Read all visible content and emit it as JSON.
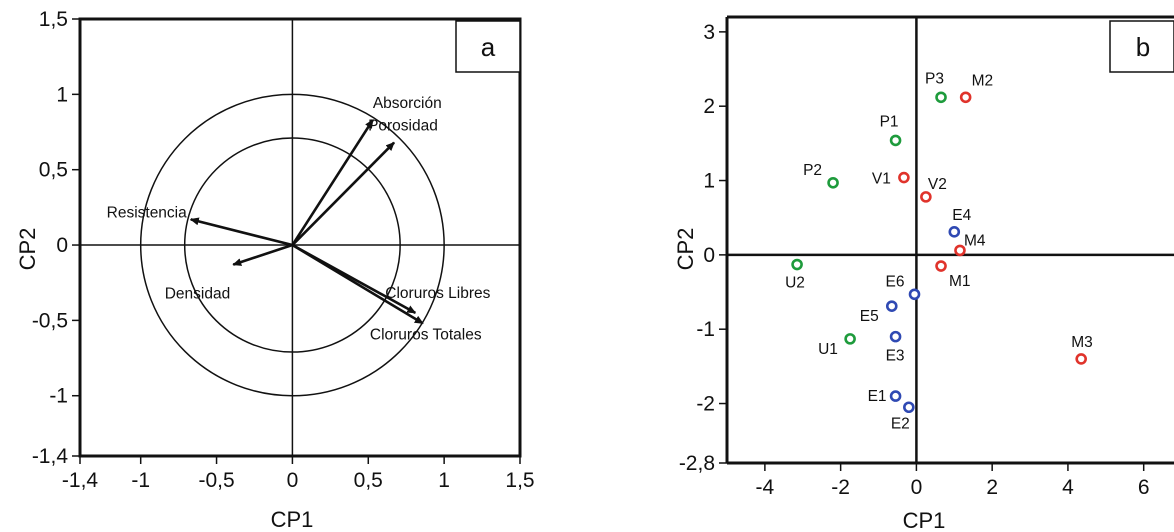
{
  "chart_data": [
    {
      "type": "biplot",
      "panel_label": "a",
      "xlabel": "CP1",
      "ylabel": "CP2",
      "xlim": [
        -1.4,
        1.5
      ],
      "ylim": [
        -1.4,
        1.5
      ],
      "xticks": [
        {
          "v": -1.4,
          "label": "-1,4"
        },
        {
          "v": -1,
          "label": "-1"
        },
        {
          "v": -0.5,
          "label": "-0,5"
        },
        {
          "v": 0,
          "label": "0"
        },
        {
          "v": 0.5,
          "label": "0,5"
        },
        {
          "v": 1,
          "label": "1"
        },
        {
          "v": 1.5,
          "label": "1,5"
        }
      ],
      "yticks": [
        {
          "v": 1.5,
          "label": "1,5"
        },
        {
          "v": 1,
          "label": "1"
        },
        {
          "v": 0.5,
          "label": "0,5"
        },
        {
          "v": 0,
          "label": "0"
        },
        {
          "v": -0.5,
          "label": "-0,5"
        },
        {
          "v": -1,
          "label": "-1"
        },
        {
          "v": -1.4,
          "label": "-1,4"
        }
      ],
      "circles": [
        1.0,
        0.71
      ],
      "vectors": [
        {
          "name": "Absorción",
          "x": 0.53,
          "y": 0.83
        },
        {
          "name": "Porosidad",
          "x": 0.67,
          "y": 0.68
        },
        {
          "name": "Resistencia",
          "x": -0.67,
          "y": 0.17
        },
        {
          "name": "Densidad",
          "x": -0.39,
          "y": -0.13
        },
        {
          "name": "Cloruros Libres",
          "x": 0.81,
          "y": -0.45
        },
        {
          "name": "Cloruros Totales",
          "x": 0.86,
          "y": -0.52
        }
      ]
    },
    {
      "type": "scatter",
      "panel_label": "b",
      "xlabel": "CP1",
      "ylabel": "CP2",
      "xlim": [
        -5,
        6.8
      ],
      "ylim": [
        -2.8,
        3.2
      ],
      "xticks": [
        {
          "v": -4,
          "label": "-4"
        },
        {
          "v": -2,
          "label": "-2"
        },
        {
          "v": 0,
          "label": "0"
        },
        {
          "v": 2,
          "label": "2"
        },
        {
          "v": 4,
          "label": "4"
        },
        {
          "v": 6,
          "label": "6"
        }
      ],
      "yticks": [
        {
          "v": 3,
          "label": "3"
        },
        {
          "v": 2,
          "label": "2"
        },
        {
          "v": 1,
          "label": "1"
        },
        {
          "v": 0,
          "label": "0"
        },
        {
          "v": -1,
          "label": "-1"
        },
        {
          "v": -2,
          "label": "-2"
        },
        {
          "v": -2.8,
          "label": "-2,8"
        }
      ],
      "colors": {
        "green": "#1e9b3c",
        "red": "#e0332b",
        "blue": "#2f49b3"
      },
      "points": [
        {
          "name": "P3",
          "x": 0.65,
          "y": 2.12,
          "color": "green"
        },
        {
          "name": "M2",
          "x": 1.3,
          "y": 2.12,
          "color": "red"
        },
        {
          "name": "P1",
          "x": -0.55,
          "y": 1.54,
          "color": "green"
        },
        {
          "name": "P2",
          "x": -2.2,
          "y": 0.97,
          "color": "green"
        },
        {
          "name": "V1",
          "x": -0.33,
          "y": 1.04,
          "color": "red"
        },
        {
          "name": "V2",
          "x": 0.25,
          "y": 0.78,
          "color": "red"
        },
        {
          "name": "E4",
          "x": 1.0,
          "y": 0.31,
          "color": "blue"
        },
        {
          "name": "M4",
          "x": 1.15,
          "y": 0.06,
          "color": "red"
        },
        {
          "name": "U2",
          "x": -3.15,
          "y": -0.13,
          "color": "green"
        },
        {
          "name": "M1",
          "x": 0.65,
          "y": -0.15,
          "color": "red"
        },
        {
          "name": "E6",
          "x": -0.05,
          "y": -0.53,
          "color": "blue"
        },
        {
          "name": "E5",
          "x": -0.65,
          "y": -0.69,
          "color": "blue"
        },
        {
          "name": "U1",
          "x": -1.75,
          "y": -1.13,
          "color": "green"
        },
        {
          "name": "E3",
          "x": -0.55,
          "y": -1.1,
          "color": "blue"
        },
        {
          "name": "M3",
          "x": 4.35,
          "y": -1.4,
          "color": "red"
        },
        {
          "name": "E1",
          "x": -0.55,
          "y": -1.9,
          "color": "blue"
        },
        {
          "name": "E2",
          "x": -0.2,
          "y": -2.05,
          "color": "blue"
        }
      ]
    }
  ]
}
